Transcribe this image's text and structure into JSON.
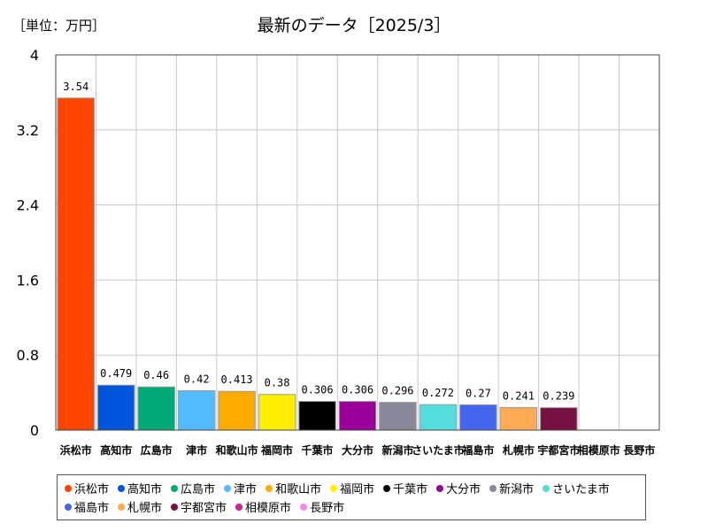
{
  "unit_label": "［単位：万円］",
  "chart_data": {
    "type": "bar",
    "title": "最新のデータ［2025/3］",
    "categories": [
      "浜松市",
      "高知市",
      "広島市",
      "津市",
      "和歌山市",
      "福岡市",
      "千葉市",
      "大分市",
      "新潟市",
      "さいたま市",
      "福島市",
      "札幌市",
      "宇都宮市",
      "相模原市",
      "長野市"
    ],
    "values": [
      3.54,
      0.479,
      0.46,
      0.42,
      0.413,
      0.38,
      0.306,
      0.306,
      0.296,
      0.272,
      0.27,
      0.241,
      0.239,
      null,
      null
    ],
    "value_labels": [
      "3.54",
      "0.479",
      "0.46",
      "0.42",
      "0.413",
      "0.38",
      "0.306",
      "0.306",
      "0.296",
      "0.272",
      "0.27",
      "0.241",
      "0.239",
      "",
      ""
    ],
    "colors": [
      "#ff4500",
      "#0055dd",
      "#00aa77",
      "#55bbff",
      "#ffaa00",
      "#ffee00",
      "#000000",
      "#990099",
      "#888899",
      "#55dddd",
      "#4466ee",
      "#ffaa55",
      "#771144",
      "#cc2299",
      "#ee88ee"
    ],
    "yticks": [
      "0",
      "0.8",
      "1.6",
      "2.4",
      "3.2",
      "4"
    ],
    "ylim": [
      0,
      4
    ],
    "grid": true,
    "legend": "bottom"
  }
}
